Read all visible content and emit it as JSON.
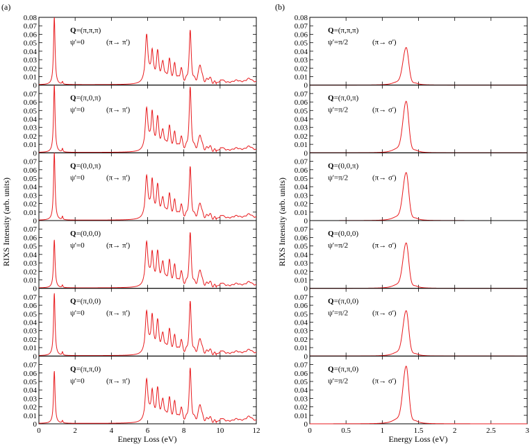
{
  "panel_labels": [
    "(a)",
    "(b)"
  ],
  "ylabel": "RIXS Intensity (arb. units)",
  "xlabel": "Energy Loss (eV)",
  "arrow_glyph": "→",
  "chart_data": [
    {
      "type": "line",
      "panel": "(a)",
      "xlim": [
        0,
        12
      ],
      "xticks": [
        "0",
        "2",
        "4",
        "6",
        "8",
        "10",
        "12"
      ],
      "ylim": [
        0,
        0.08
      ],
      "yticks_top": [
        "0",
        "0.01",
        "0.02",
        "0.03",
        "0.04",
        "0.05",
        "0.06",
        "0.07",
        "0.08"
      ],
      "yticks": [
        "0",
        "0.01",
        "0.02",
        "0.03",
        "0.04",
        "0.05",
        "0.06",
        "0.07"
      ],
      "line_color": "#e8191c",
      "peaks": [
        {
          "x": 0.85,
          "w": 0.05
        },
        {
          "x": 1.3,
          "w": 0.03
        },
        {
          "x": 5.95,
          "w": 0.09
        },
        {
          "x": 6.25,
          "w": 0.07
        },
        {
          "x": 6.55,
          "w": 0.09
        },
        {
          "x": 6.85,
          "w": 0.09
        },
        {
          "x": 7.2,
          "w": 0.08
        },
        {
          "x": 7.5,
          "w": 0.08
        },
        {
          "x": 7.85,
          "w": 0.08
        },
        {
          "x": 8.35,
          "w": 0.07
        },
        {
          "x": 8.9,
          "w": 0.1
        },
        {
          "x": 9.4,
          "w": 0.12
        },
        {
          "x": 10.1,
          "w": 0.15
        },
        {
          "x": 10.9,
          "w": 0.2
        },
        {
          "x": 11.6,
          "w": 0.2
        }
      ],
      "subplots": [
        {
          "q_label": "Q",
          "q_value": "=(π,π,π)",
          "psi": "ψ'=0",
          "polarization": "(π",
          "pol_end": " π')",
          "heights": [
            0.08,
            0.003,
            0.057,
            0.036,
            0.034,
            0.023,
            0.026,
            0.021,
            0.017,
            0.061,
            0.023,
            0.007,
            0.004,
            0.003,
            0.005
          ]
        },
        {
          "q_label": "Q",
          "q_value": "=(π,0,π)",
          "psi": "ψ'=0",
          "polarization": "(π",
          "pol_end": " π')",
          "heights": [
            0.08,
            0.004,
            0.05,
            0.044,
            0.036,
            0.022,
            0.027,
            0.02,
            0.016,
            0.074,
            0.02,
            0.006,
            0.004,
            0.003,
            0.005
          ]
        },
        {
          "q_label": "Q",
          "q_value": "=(0,0,π)",
          "psi": "ψ'=0",
          "polarization": "(π",
          "pol_end": " π')",
          "heights": [
            0.08,
            0.004,
            0.05,
            0.044,
            0.036,
            0.022,
            0.027,
            0.02,
            0.016,
            0.06,
            0.02,
            0.006,
            0.004,
            0.003,
            0.005
          ]
        },
        {
          "q_label": "Q",
          "q_value": "=(0,0,0)",
          "psi": "ψ'=0",
          "polarization": "(π",
          "pol_end": " π')",
          "heights": [
            0.057,
            0.003,
            0.052,
            0.038,
            0.037,
            0.026,
            0.028,
            0.023,
            0.017,
            0.062,
            0.021,
            0.006,
            0.004,
            0.003,
            0.005
          ]
        },
        {
          "q_label": "Q",
          "q_value": "=(π,0,0)",
          "psi": "ψ'=0",
          "polarization": "(π",
          "pol_end": " π')",
          "heights": [
            0.074,
            0.004,
            0.05,
            0.044,
            0.036,
            0.022,
            0.027,
            0.02,
            0.016,
            0.061,
            0.02,
            0.006,
            0.004,
            0.003,
            0.005
          ]
        },
        {
          "q_label": "Q",
          "q_value": "=(π,π,0)",
          "psi": "ψ'=0",
          "polarization": "(π",
          "pol_end": " π')",
          "heights": [
            0.062,
            0.003,
            0.05,
            0.035,
            0.036,
            0.024,
            0.026,
            0.022,
            0.016,
            0.062,
            0.022,
            0.006,
            0.004,
            0.003,
            0.006
          ]
        }
      ]
    },
    {
      "type": "line",
      "panel": "(b)",
      "xlim": [
        0,
        3
      ],
      "xticks": [
        "0",
        "0.5",
        "1",
        "1.5",
        "2",
        "2.5",
        "3"
      ],
      "ylim": [
        0,
        0.08
      ],
      "yticks_top": [
        "0",
        "0.01",
        "0.02",
        "0.03",
        "0.04",
        "0.05",
        "0.06",
        "0.07",
        "0.08"
      ],
      "yticks": [
        "0",
        "0.01",
        "0.02",
        "0.03",
        "0.04",
        "0.05",
        "0.06",
        "0.07"
      ],
      "line_color": "#e8191c",
      "peak_center": 1.33,
      "subplots": [
        {
          "q_label": "Q",
          "q_value": "=(π,π,π)",
          "psi": "ψ'=π/2",
          "polarization": "(π",
          "pol_end": " σ')",
          "height": 0.043
        },
        {
          "q_label": "Q",
          "q_value": "=(π,0,π)",
          "psi": "ψ'=π/2",
          "polarization": "(π",
          "pol_end": " σ')",
          "height": 0.059
        },
        {
          "q_label": "Q",
          "q_value": "=(0,0,π)",
          "psi": "ψ'=π/2",
          "polarization": "(π",
          "pol_end": " σ')",
          "height": 0.055
        },
        {
          "q_label": "Q",
          "q_value": "=(0,0,0)",
          "psi": "ψ'=π/2",
          "polarization": "(π",
          "pol_end": " σ')",
          "height": 0.052
        },
        {
          "q_label": "Q",
          "q_value": "=(π,0,0)",
          "psi": "ψ'=π/2",
          "polarization": "(π",
          "pol_end": " σ')",
          "height": 0.052
        },
        {
          "q_label": "Q",
          "q_value": "=(π,π,0)",
          "psi": "ψ'=π/2",
          "polarization": "(π",
          "pol_end": " σ')",
          "height": 0.066
        }
      ]
    }
  ]
}
